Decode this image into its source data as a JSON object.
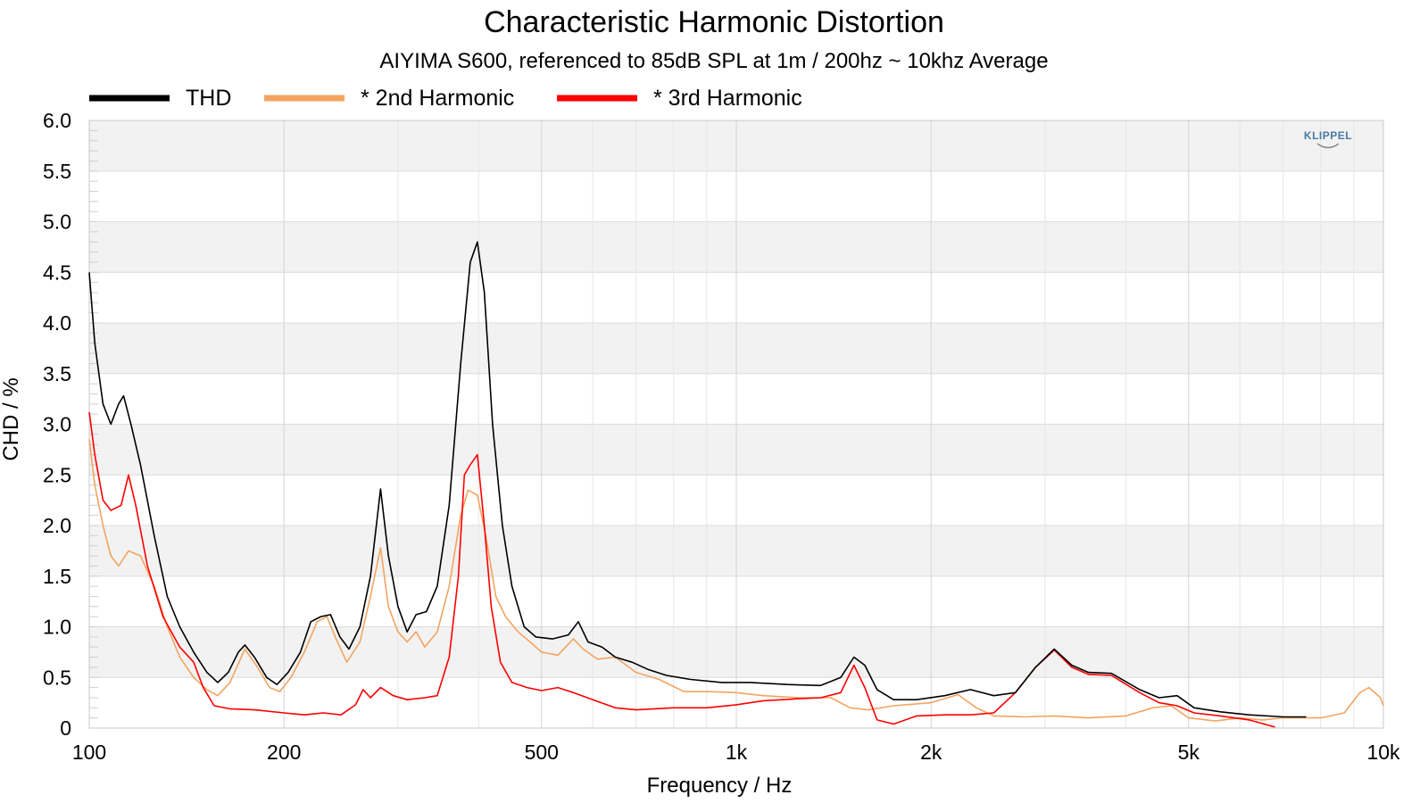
{
  "chart_data": {
    "type": "line",
    "title": "Characteristic Harmonic Distortion",
    "subtitle": "AIYIMA S600, referenced to 85dB SPL at 1m / 200hz ~ 10khz Average",
    "xlabel": "Frequency / Hz",
    "ylabel": "CHD / %",
    "x_scale": "log",
    "xlim": [
      100,
      10000
    ],
    "ylim": [
      0,
      6.0
    ],
    "x_ticks": [
      100,
      200,
      500,
      1000,
      2000,
      5000,
      10000
    ],
    "x_tick_labels": [
      "100",
      "200",
      "500",
      "1k",
      "2k",
      "5k",
      "10k"
    ],
    "y_ticks": [
      0,
      0.5,
      1.0,
      1.5,
      2.0,
      2.5,
      3.0,
      3.5,
      4.0,
      4.5,
      5.0,
      5.5,
      6.0
    ],
    "y_tick_labels": [
      "0",
      "0.5",
      "1.0",
      "1.5",
      "2.0",
      "2.5",
      "3.0",
      "3.5",
      "4.0",
      "4.5",
      "5.0",
      "5.5",
      "6.0"
    ],
    "grid": true,
    "legend_position": "top-left",
    "series": [
      {
        "name": "THD",
        "color": "#000000",
        "points": [
          [
            100,
            4.5
          ],
          [
            102,
            3.8
          ],
          [
            105,
            3.2
          ],
          [
            108,
            3.0
          ],
          [
            111,
            3.2
          ],
          [
            113,
            3.28
          ],
          [
            116,
            3.0
          ],
          [
            120,
            2.6
          ],
          [
            126,
            1.9
          ],
          [
            132,
            1.3
          ],
          [
            138,
            1.0
          ],
          [
            145,
            0.75
          ],
          [
            152,
            0.55
          ],
          [
            158,
            0.45
          ],
          [
            164,
            0.55
          ],
          [
            170,
            0.75
          ],
          [
            174,
            0.82
          ],
          [
            180,
            0.7
          ],
          [
            188,
            0.5
          ],
          [
            195,
            0.43
          ],
          [
            203,
            0.55
          ],
          [
            212,
            0.75
          ],
          [
            220,
            1.05
          ],
          [
            228,
            1.1
          ],
          [
            236,
            1.12
          ],
          [
            244,
            0.9
          ],
          [
            252,
            0.78
          ],
          [
            262,
            1.0
          ],
          [
            272,
            1.5
          ],
          [
            282,
            2.36
          ],
          [
            290,
            1.7
          ],
          [
            300,
            1.2
          ],
          [
            310,
            0.95
          ],
          [
            320,
            1.12
          ],
          [
            332,
            1.15
          ],
          [
            345,
            1.4
          ],
          [
            360,
            2.2
          ],
          [
            375,
            3.6
          ],
          [
            388,
            4.6
          ],
          [
            398,
            4.8
          ],
          [
            408,
            4.3
          ],
          [
            420,
            3.0
          ],
          [
            435,
            2.0
          ],
          [
            450,
            1.4
          ],
          [
            470,
            1.0
          ],
          [
            490,
            0.9
          ],
          [
            520,
            0.88
          ],
          [
            550,
            0.92
          ],
          [
            570,
            1.05
          ],
          [
            590,
            0.85
          ],
          [
            620,
            0.8
          ],
          [
            650,
            0.7
          ],
          [
            690,
            0.65
          ],
          [
            730,
            0.58
          ],
          [
            780,
            0.52
          ],
          [
            850,
            0.48
          ],
          [
            950,
            0.45
          ],
          [
            1050,
            0.45
          ],
          [
            1200,
            0.43
          ],
          [
            1350,
            0.42
          ],
          [
            1450,
            0.5
          ],
          [
            1520,
            0.7
          ],
          [
            1580,
            0.62
          ],
          [
            1650,
            0.38
          ],
          [
            1750,
            0.28
          ],
          [
            1900,
            0.28
          ],
          [
            2100,
            0.32
          ],
          [
            2300,
            0.38
          ],
          [
            2500,
            0.32
          ],
          [
            2700,
            0.35
          ],
          [
            2900,
            0.6
          ],
          [
            3100,
            0.78
          ],
          [
            3300,
            0.62
          ],
          [
            3500,
            0.55
          ],
          [
            3800,
            0.54
          ],
          [
            4200,
            0.38
          ],
          [
            4500,
            0.3
          ],
          [
            4800,
            0.32
          ],
          [
            5100,
            0.2
          ],
          [
            5600,
            0.16
          ],
          [
            6200,
            0.13
          ],
          [
            7000,
            0.11
          ],
          [
            7600,
            0.11
          ]
        ]
      },
      {
        "name": "* 2nd Harmonic",
        "color": "#f4a460",
        "points": [
          [
            100,
            2.85
          ],
          [
            102,
            2.4
          ],
          [
            105,
            2.0
          ],
          [
            108,
            1.7
          ],
          [
            111,
            1.6
          ],
          [
            115,
            1.75
          ],
          [
            120,
            1.7
          ],
          [
            126,
            1.4
          ],
          [
            132,
            1.0
          ],
          [
            138,
            0.7
          ],
          [
            145,
            0.5
          ],
          [
            152,
            0.38
          ],
          [
            158,
            0.32
          ],
          [
            165,
            0.45
          ],
          [
            174,
            0.78
          ],
          [
            182,
            0.6
          ],
          [
            190,
            0.4
          ],
          [
            197,
            0.36
          ],
          [
            205,
            0.5
          ],
          [
            215,
            0.75
          ],
          [
            225,
            1.05
          ],
          [
            233,
            1.1
          ],
          [
            240,
            0.9
          ],
          [
            250,
            0.65
          ],
          [
            262,
            0.85
          ],
          [
            272,
            1.3
          ],
          [
            282,
            1.78
          ],
          [
            290,
            1.2
          ],
          [
            300,
            0.95
          ],
          [
            310,
            0.85
          ],
          [
            320,
            0.95
          ],
          [
            330,
            0.8
          ],
          [
            345,
            0.95
          ],
          [
            360,
            1.4
          ],
          [
            375,
            2.1
          ],
          [
            385,
            2.35
          ],
          [
            398,
            2.3
          ],
          [
            410,
            1.9
          ],
          [
            425,
            1.3
          ],
          [
            440,
            1.1
          ],
          [
            460,
            0.95
          ],
          [
            480,
            0.85
          ],
          [
            500,
            0.75
          ],
          [
            530,
            0.72
          ],
          [
            560,
            0.88
          ],
          [
            580,
            0.78
          ],
          [
            610,
            0.68
          ],
          [
            650,
            0.7
          ],
          [
            700,
            0.55
          ],
          [
            760,
            0.48
          ],
          [
            830,
            0.36
          ],
          [
            900,
            0.36
          ],
          [
            1000,
            0.35
          ],
          [
            1100,
            0.32
          ],
          [
            1250,
            0.3
          ],
          [
            1400,
            0.3
          ],
          [
            1500,
            0.2
          ],
          [
            1600,
            0.18
          ],
          [
            1750,
            0.22
          ],
          [
            2000,
            0.25
          ],
          [
            2200,
            0.33
          ],
          [
            2350,
            0.2
          ],
          [
            2500,
            0.12
          ],
          [
            2800,
            0.11
          ],
          [
            3100,
            0.12
          ],
          [
            3500,
            0.1
          ],
          [
            4000,
            0.12
          ],
          [
            4400,
            0.2
          ],
          [
            4700,
            0.22
          ],
          [
            5000,
            0.1
          ],
          [
            5500,
            0.07
          ],
          [
            6000,
            0.1
          ],
          [
            6500,
            0.08
          ],
          [
            7000,
            0.1
          ],
          [
            8000,
            0.1
          ],
          [
            8700,
            0.15
          ],
          [
            9200,
            0.35
          ],
          [
            9500,
            0.4
          ],
          [
            9900,
            0.3
          ],
          [
            10000,
            0.22
          ]
        ]
      },
      {
        "name": "* 3rd Harmonic",
        "color": "#ff0000",
        "points": [
          [
            100,
            3.12
          ],
          [
            102,
            2.7
          ],
          [
            105,
            2.25
          ],
          [
            108,
            2.15
          ],
          [
            112,
            2.2
          ],
          [
            115,
            2.5
          ],
          [
            118,
            2.2
          ],
          [
            123,
            1.6
          ],
          [
            130,
            1.1
          ],
          [
            138,
            0.8
          ],
          [
            145,
            0.65
          ],
          [
            150,
            0.4
          ],
          [
            156,
            0.22
          ],
          [
            165,
            0.19
          ],
          [
            180,
            0.18
          ],
          [
            200,
            0.15
          ],
          [
            215,
            0.13
          ],
          [
            230,
            0.15
          ],
          [
            245,
            0.13
          ],
          [
            258,
            0.23
          ],
          [
            265,
            0.38
          ],
          [
            272,
            0.3
          ],
          [
            282,
            0.4
          ],
          [
            295,
            0.32
          ],
          [
            310,
            0.28
          ],
          [
            330,
            0.3
          ],
          [
            345,
            0.32
          ],
          [
            360,
            0.7
          ],
          [
            372,
            1.5
          ],
          [
            380,
            2.5
          ],
          [
            388,
            2.6
          ],
          [
            398,
            2.7
          ],
          [
            408,
            2.0
          ],
          [
            418,
            1.2
          ],
          [
            432,
            0.65
          ],
          [
            450,
            0.45
          ],
          [
            475,
            0.4
          ],
          [
            500,
            0.37
          ],
          [
            530,
            0.4
          ],
          [
            560,
            0.35
          ],
          [
            600,
            0.28
          ],
          [
            650,
            0.2
          ],
          [
            700,
            0.18
          ],
          [
            800,
            0.2
          ],
          [
            900,
            0.2
          ],
          [
            1000,
            0.23
          ],
          [
            1100,
            0.27
          ],
          [
            1250,
            0.29
          ],
          [
            1350,
            0.3
          ],
          [
            1450,
            0.35
          ],
          [
            1520,
            0.62
          ],
          [
            1580,
            0.4
          ],
          [
            1650,
            0.08
          ],
          [
            1750,
            0.04
          ],
          [
            1900,
            0.12
          ],
          [
            2100,
            0.13
          ],
          [
            2300,
            0.13
          ],
          [
            2500,
            0.15
          ],
          [
            2700,
            0.35
          ],
          [
            2900,
            0.6
          ],
          [
            3100,
            0.77
          ],
          [
            3300,
            0.6
          ],
          [
            3500,
            0.53
          ],
          [
            3800,
            0.52
          ],
          [
            4200,
            0.35
          ],
          [
            4500,
            0.25
          ],
          [
            4800,
            0.22
          ],
          [
            5100,
            0.15
          ],
          [
            5600,
            0.12
          ],
          [
            6200,
            0.08
          ],
          [
            6800,
            0.01
          ]
        ]
      }
    ]
  },
  "watermark": "KLIPPEL",
  "legend": [
    "THD",
    "* 2nd Harmonic",
    "* 3rd Harmonic"
  ]
}
